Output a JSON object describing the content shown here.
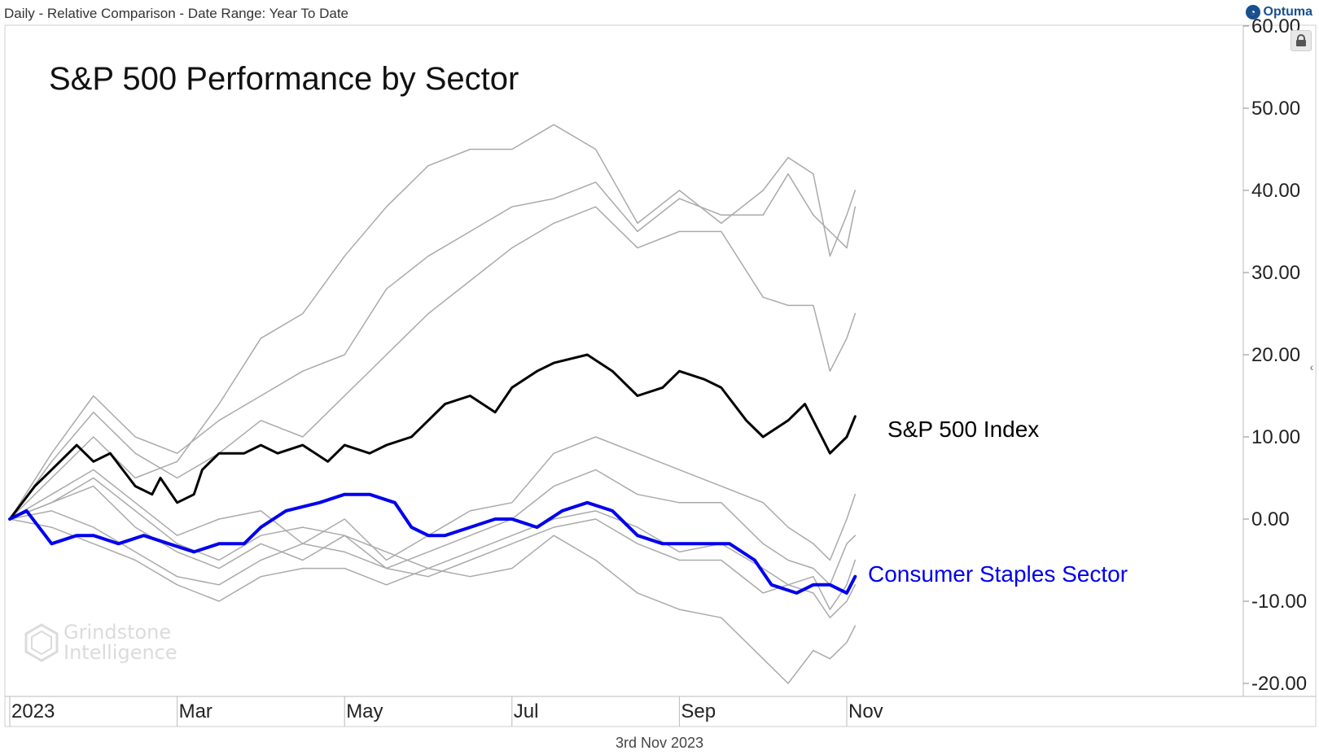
{
  "header": {
    "text": "Daily - Relative Comparison - Date Range: Year To Date"
  },
  "brand": {
    "name": "Optuma"
  },
  "footer": {
    "date": "3rd Nov 2023"
  },
  "watermark": {
    "line1": "Grindstone",
    "line2": "Intelligence"
  },
  "icons": {
    "lock": "lock-icon",
    "collapse": "chevron-left-icon"
  },
  "colors": {
    "spx": "#000000",
    "staples": "#0000ee",
    "other": "#aaaaaa"
  },
  "chart_data": {
    "type": "line",
    "title": "S&P 500 Performance by Sector",
    "ylim": [
      -20,
      60
    ],
    "xlim": [
      0,
      10
    ],
    "y_ticks": [
      {
        "value": 60,
        "label": "60.00"
      },
      {
        "value": 50,
        "label": "50.00"
      },
      {
        "value": 40,
        "label": "40.00"
      },
      {
        "value": 30,
        "label": "30.00"
      },
      {
        "value": 20,
        "label": "20.00"
      },
      {
        "value": 10,
        "label": "10.00"
      },
      {
        "value": 0,
        "label": "0.00"
      },
      {
        "value": -10,
        "label": "-10.00"
      },
      {
        "value": -20,
        "label": "-20.00"
      }
    ],
    "x_ticks": [
      {
        "value": 0,
        "label": "2023"
      },
      {
        "value": 2,
        "label": "Mar"
      },
      {
        "value": 4,
        "label": "May"
      },
      {
        "value": 6,
        "label": "Jul"
      },
      {
        "value": 8,
        "label": "Sep"
      },
      {
        "value": 10,
        "label": "Nov"
      }
    ],
    "series": [
      {
        "name": "S&P 500 Index",
        "color": "#000000",
        "width": 3,
        "x": [
          0,
          0.3,
          0.5,
          0.8,
          1.0,
          1.2,
          1.5,
          1.7,
          1.8,
          2.0,
          2.2,
          2.3,
          2.5,
          2.8,
          3.0,
          3.2,
          3.5,
          3.8,
          4.0,
          4.3,
          4.5,
          4.8,
          5.0,
          5.2,
          5.5,
          5.8,
          6.0,
          6.3,
          6.5,
          6.9,
          7.2,
          7.5,
          7.8,
          8.0,
          8.3,
          8.5,
          8.8,
          9.0,
          9.3,
          9.5,
          9.7,
          9.8,
          10.0,
          10.1
        ],
        "y": [
          0,
          4,
          6,
          9,
          7,
          8,
          4,
          3,
          5,
          2,
          3,
          6,
          8,
          8,
          9,
          8,
          9,
          7,
          9,
          8,
          9,
          10,
          12,
          14,
          15,
          13,
          16,
          18,
          19,
          20,
          18,
          15,
          16,
          18,
          17,
          16,
          12,
          10,
          12,
          14,
          10,
          8,
          10,
          12.5
        ]
      },
      {
        "name": "Consumer Staples Sector",
        "color": "#0000ee",
        "width": 4,
        "x": [
          0,
          0.2,
          0.5,
          0.8,
          1.0,
          1.3,
          1.6,
          1.9,
          2.2,
          2.5,
          2.8,
          3.0,
          3.3,
          3.7,
          4.0,
          4.3,
          4.6,
          4.8,
          5.0,
          5.2,
          5.5,
          5.8,
          6.0,
          6.3,
          6.6,
          6.9,
          7.2,
          7.5,
          7.8,
          8.0,
          8.3,
          8.6,
          8.9,
          9.1,
          9.4,
          9.6,
          9.8,
          10.0,
          10.1
        ],
        "y": [
          0,
          1,
          -3,
          -2,
          -2,
          -3,
          -2,
          -3,
          -4,
          -3,
          -3,
          -1,
          1,
          2,
          3,
          3,
          2,
          -1,
          -2,
          -2,
          -1,
          0,
          0,
          -1,
          1,
          2,
          1,
          -2,
          -3,
          -3,
          -3,
          -3,
          -5,
          -8,
          -9,
          -8,
          -8,
          -9,
          -7
        ]
      },
      {
        "name": "",
        "color": "#aaaaaa",
        "width": 1.5,
        "x": [
          0,
          0.5,
          1.0,
          1.5,
          2.0,
          2.5,
          3.0,
          3.5,
          4.0,
          4.5,
          5.0,
          5.5,
          6.0,
          6.5,
          7.0,
          7.5,
          8.0,
          8.5,
          9.0,
          9.3,
          9.6,
          9.8,
          10.0,
          10.1
        ],
        "y": [
          0,
          5,
          10,
          5,
          7,
          14,
          22,
          25,
          32,
          38,
          43,
          45,
          45,
          48,
          45,
          36,
          40,
          36,
          40,
          44,
          42,
          32,
          37,
          40
        ]
      },
      {
        "name": "",
        "color": "#aaaaaa",
        "width": 1.5,
        "x": [
          0,
          0.5,
          1.0,
          1.5,
          2.0,
          2.5,
          3.0,
          3.5,
          4.0,
          4.5,
          5.0,
          5.5,
          6.0,
          6.5,
          7.0,
          7.5,
          8.0,
          8.5,
          9.0,
          9.3,
          9.6,
          9.8,
          10.0,
          10.1
        ],
        "y": [
          0,
          8,
          15,
          10,
          8,
          12,
          15,
          18,
          20,
          28,
          32,
          35,
          38,
          39,
          41,
          35,
          39,
          37,
          37,
          42,
          37,
          35,
          33,
          38
        ]
      },
      {
        "name": "",
        "color": "#aaaaaa",
        "width": 1.5,
        "x": [
          0,
          0.5,
          1.0,
          1.5,
          2.0,
          2.5,
          3.0,
          3.5,
          4.0,
          4.5,
          5.0,
          5.5,
          6.0,
          6.5,
          7.0,
          7.5,
          8.0,
          8.5,
          9.0,
          9.3,
          9.6,
          9.8,
          10.0,
          10.1
        ],
        "y": [
          0,
          7,
          13,
          8,
          5,
          8,
          12,
          10,
          15,
          20,
          25,
          29,
          33,
          36,
          38,
          33,
          35,
          35,
          27,
          26,
          26,
          18,
          22,
          25
        ]
      },
      {
        "name": "",
        "color": "#aaaaaa",
        "width": 1.5,
        "x": [
          0,
          0.5,
          1.0,
          1.5,
          2.0,
          2.5,
          3.0,
          3.5,
          4.0,
          4.5,
          5.0,
          5.5,
          6.0,
          6.5,
          7.0,
          7.5,
          8.0,
          8.5,
          9.0,
          9.3,
          9.6,
          9.8,
          10.0,
          10.1
        ],
        "y": [
          0,
          3,
          6,
          2,
          -2,
          0,
          1,
          -3,
          0,
          -5,
          -2,
          1,
          2,
          8,
          10,
          8,
          6,
          4,
          2,
          -1,
          -3,
          -5,
          0,
          3
        ]
      },
      {
        "name": "",
        "color": "#aaaaaa",
        "width": 1.5,
        "x": [
          0,
          0.5,
          1.0,
          1.5,
          2.0,
          2.5,
          3.0,
          3.5,
          4.0,
          4.5,
          5.0,
          5.5,
          6.0,
          6.5,
          7.0,
          7.5,
          8.0,
          8.5,
          9.0,
          9.3,
          9.6,
          9.8,
          10.0,
          10.1
        ],
        "y": [
          0,
          2,
          4,
          -1,
          -4,
          -6,
          -3,
          -5,
          -2,
          -6,
          -4,
          -2,
          0,
          4,
          6,
          3,
          2,
          2,
          -3,
          -5,
          -6,
          -8,
          -3,
          -2
        ]
      },
      {
        "name": "",
        "color": "#aaaaaa",
        "width": 1.5,
        "x": [
          0,
          0.5,
          1.0,
          1.5,
          2.0,
          2.5,
          3.0,
          3.5,
          4.0,
          4.5,
          5.0,
          5.5,
          6.0,
          6.5,
          7.0,
          7.5,
          8.0,
          8.5,
          9.0,
          9.3,
          9.6,
          9.8,
          10.0,
          10.1
        ],
        "y": [
          0,
          1,
          -1,
          -4,
          -7,
          -8,
          -5,
          -3,
          -4,
          -6,
          -7,
          -5,
          -3,
          -1,
          0,
          -3,
          -5,
          -5,
          -9,
          -8,
          -7,
          -11,
          -8,
          -5
        ]
      },
      {
        "name": "",
        "color": "#aaaaaa",
        "width": 1.5,
        "x": [
          0,
          0.5,
          1.0,
          1.5,
          2.0,
          2.5,
          3.0,
          3.5,
          4.0,
          4.5,
          5.0,
          5.5,
          6.0,
          6.5,
          7.0,
          7.5,
          8.0,
          8.5,
          9.0,
          9.3,
          9.6,
          9.8,
          10.0,
          10.1
        ],
        "y": [
          0,
          -1,
          -3,
          -5,
          -8,
          -10,
          -7,
          -6,
          -6,
          -8,
          -6,
          -7,
          -6,
          -2,
          -5,
          -9,
          -11,
          -12,
          -17,
          -20,
          -16,
          -17,
          -15,
          -13
        ]
      },
      {
        "name": "",
        "color": "#aaaaaa",
        "width": 1.5,
        "x": [
          0,
          0.5,
          1.0,
          1.5,
          2.0,
          2.5,
          3.0,
          3.5,
          4.0,
          4.5,
          5.0,
          5.5,
          6.0,
          6.5,
          7.0,
          7.5,
          8.0,
          8.5,
          9.0,
          9.3,
          9.6,
          9.8,
          10.0,
          10.1
        ],
        "y": [
          0,
          2,
          5,
          1,
          -3,
          -5,
          -2,
          -1,
          -2,
          -4,
          -6,
          -4,
          -2,
          0,
          1,
          -1,
          -4,
          -3,
          -6,
          -8,
          -9,
          -12,
          -10,
          -8
        ]
      }
    ],
    "annotations": [
      {
        "text": "S&P 500 Index",
        "color": "#000000"
      },
      {
        "text": "Consumer Staples Sector",
        "color": "#0000ee"
      }
    ]
  }
}
